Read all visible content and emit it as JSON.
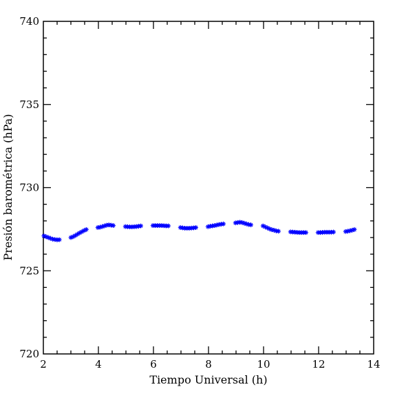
{
  "chart_data": {
    "type": "scatter",
    "title": "",
    "xlabel": "Tiempo Universal (h)",
    "ylabel": "Presión barométrica (hPa)",
    "xlim": [
      2,
      14
    ],
    "ylim": [
      720,
      740
    ],
    "xticks": [
      2,
      4,
      6,
      8,
      10,
      12,
      14
    ],
    "xtick_labels": [
      "2",
      "4",
      "6",
      "8",
      "10",
      "12",
      "14"
    ],
    "yticks": [
      720,
      725,
      730,
      735,
      740
    ],
    "ytick_labels": [
      "720",
      "725",
      "730",
      "735",
      "740"
    ],
    "x_minor_step": 0.5,
    "y_minor_step": 1,
    "grid": false,
    "marker": "asterisk",
    "series": [
      {
        "name": "",
        "color": "#0000ff",
        "points": [
          [
            2.02,
            727.1
          ],
          [
            2.1,
            727.05
          ],
          [
            2.18,
            727.0
          ],
          [
            2.26,
            726.95
          ],
          [
            2.34,
            726.9
          ],
          [
            2.42,
            726.88
          ],
          [
            2.5,
            726.86
          ],
          [
            2.58,
            726.87
          ],
          [
            3.0,
            727.0
          ],
          [
            3.08,
            727.05
          ],
          [
            3.16,
            727.12
          ],
          [
            3.24,
            727.2
          ],
          [
            3.32,
            727.28
          ],
          [
            3.4,
            727.35
          ],
          [
            3.48,
            727.42
          ],
          [
            3.56,
            727.48
          ],
          [
            3.98,
            727.6
          ],
          [
            4.06,
            727.62
          ],
          [
            4.14,
            727.66
          ],
          [
            4.22,
            727.7
          ],
          [
            4.3,
            727.74
          ],
          [
            4.38,
            727.76
          ],
          [
            4.46,
            727.74
          ],
          [
            4.54,
            727.72
          ],
          [
            4.98,
            727.66
          ],
          [
            5.06,
            727.65
          ],
          [
            5.14,
            727.64
          ],
          [
            5.22,
            727.64
          ],
          [
            5.3,
            727.65
          ],
          [
            5.38,
            727.66
          ],
          [
            5.46,
            727.68
          ],
          [
            5.54,
            727.7
          ],
          [
            5.98,
            727.72
          ],
          [
            6.06,
            727.72
          ],
          [
            6.14,
            727.72
          ],
          [
            6.22,
            727.72
          ],
          [
            6.3,
            727.72
          ],
          [
            6.38,
            727.71
          ],
          [
            6.46,
            727.7
          ],
          [
            6.54,
            727.7
          ],
          [
            6.98,
            727.6
          ],
          [
            7.06,
            727.58
          ],
          [
            7.14,
            727.56
          ],
          [
            7.22,
            727.56
          ],
          [
            7.3,
            727.56
          ],
          [
            7.38,
            727.57
          ],
          [
            7.46,
            727.58
          ],
          [
            7.54,
            727.6
          ],
          [
            7.98,
            727.65
          ],
          [
            8.06,
            727.68
          ],
          [
            8.14,
            727.7
          ],
          [
            8.22,
            727.72
          ],
          [
            8.3,
            727.75
          ],
          [
            8.38,
            727.78
          ],
          [
            8.46,
            727.8
          ],
          [
            8.54,
            727.82
          ],
          [
            8.98,
            727.88
          ],
          [
            9.06,
            727.9
          ],
          [
            9.14,
            727.92
          ],
          [
            9.22,
            727.9
          ],
          [
            9.3,
            727.86
          ],
          [
            9.38,
            727.82
          ],
          [
            9.46,
            727.78
          ],
          [
            9.54,
            727.76
          ],
          [
            9.98,
            727.7
          ],
          [
            10.06,
            727.64
          ],
          [
            10.14,
            727.58
          ],
          [
            10.22,
            727.52
          ],
          [
            10.3,
            727.47
          ],
          [
            10.38,
            727.44
          ],
          [
            10.46,
            727.4
          ],
          [
            10.54,
            727.38
          ],
          [
            10.98,
            727.34
          ],
          [
            11.06,
            727.33
          ],
          [
            11.14,
            727.32
          ],
          [
            11.22,
            727.31
          ],
          [
            11.3,
            727.3
          ],
          [
            11.38,
            727.3
          ],
          [
            11.46,
            727.3
          ],
          [
            11.54,
            727.3
          ],
          [
            11.98,
            727.3
          ],
          [
            12.06,
            727.3
          ],
          [
            12.14,
            727.31
          ],
          [
            12.22,
            727.32
          ],
          [
            12.3,
            727.32
          ],
          [
            12.38,
            727.32
          ],
          [
            12.46,
            727.32
          ],
          [
            12.54,
            727.33
          ],
          [
            12.98,
            727.36
          ],
          [
            13.06,
            727.38
          ],
          [
            13.14,
            727.41
          ],
          [
            13.22,
            727.44
          ],
          [
            13.3,
            727.48
          ]
        ]
      }
    ]
  }
}
